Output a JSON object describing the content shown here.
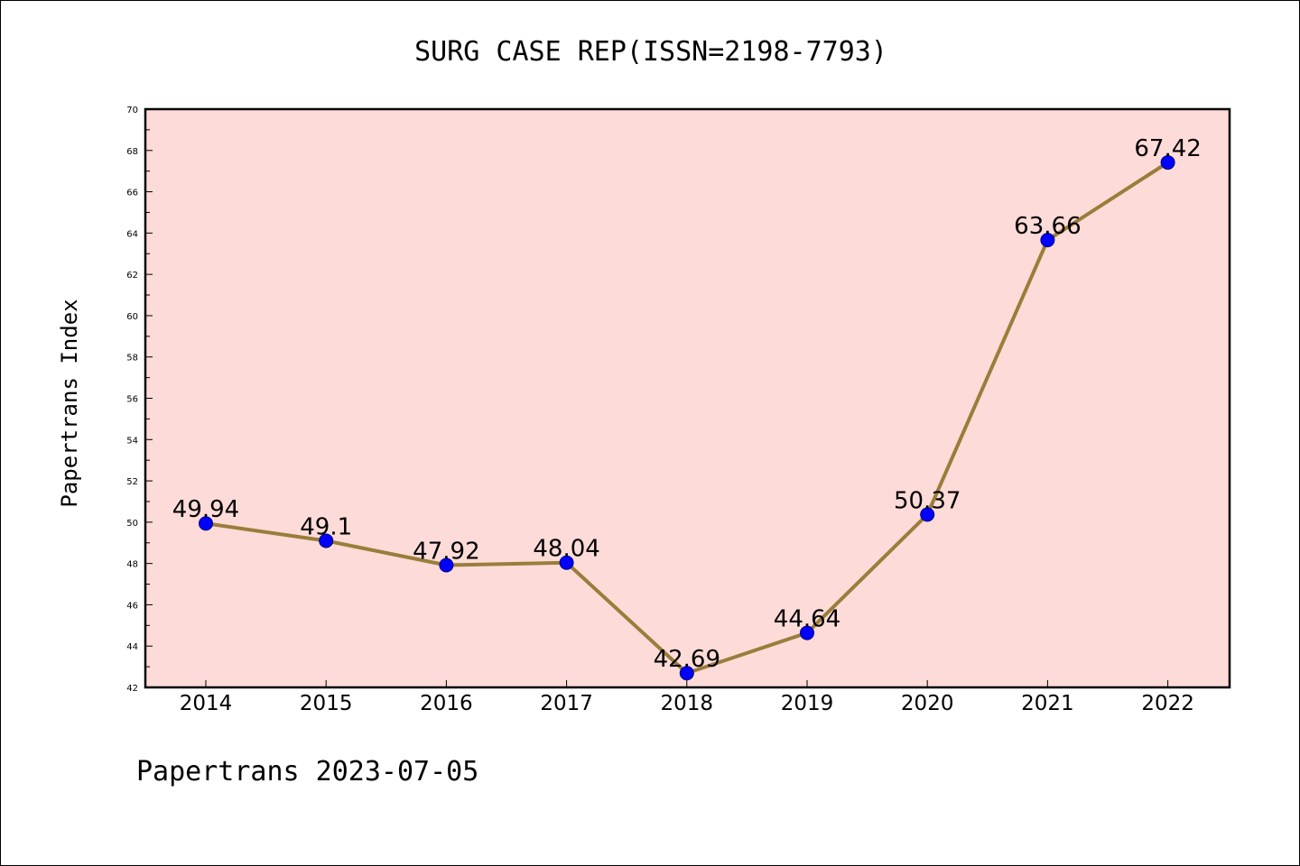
{
  "chart_data": {
    "type": "line",
    "title": "SURG CASE REP(ISSN=2198-7793)",
    "ylabel": "Papertrans Index",
    "xlabel": "",
    "categories": [
      "2014",
      "2015",
      "2016",
      "2017",
      "2018",
      "2019",
      "2020",
      "2021",
      "2022"
    ],
    "series": [
      {
        "values": [
          49.94,
          49.1,
          47.92,
          48.04,
          42.69,
          44.64,
          50.37,
          63.66,
          67.42
        ],
        "labels": [
          "49.94",
          "49.1",
          "47.92",
          "48.04",
          "42.69",
          "44.64",
          "50.37",
          "63.66",
          "67.42"
        ]
      }
    ],
    "ylim": [
      42,
      70
    ],
    "yticks": [
      "42",
      "44",
      "46",
      "48",
      "50",
      "52",
      "54",
      "56",
      "58",
      "60",
      "62",
      "64",
      "66",
      "68",
      "70"
    ],
    "grid": false,
    "colors": {
      "plot_background": "#fddbd8",
      "line": "#9a7d3a",
      "marker": "#0000ff"
    }
  },
  "footer": {
    "text": "Papertrans 2023-07-05"
  }
}
